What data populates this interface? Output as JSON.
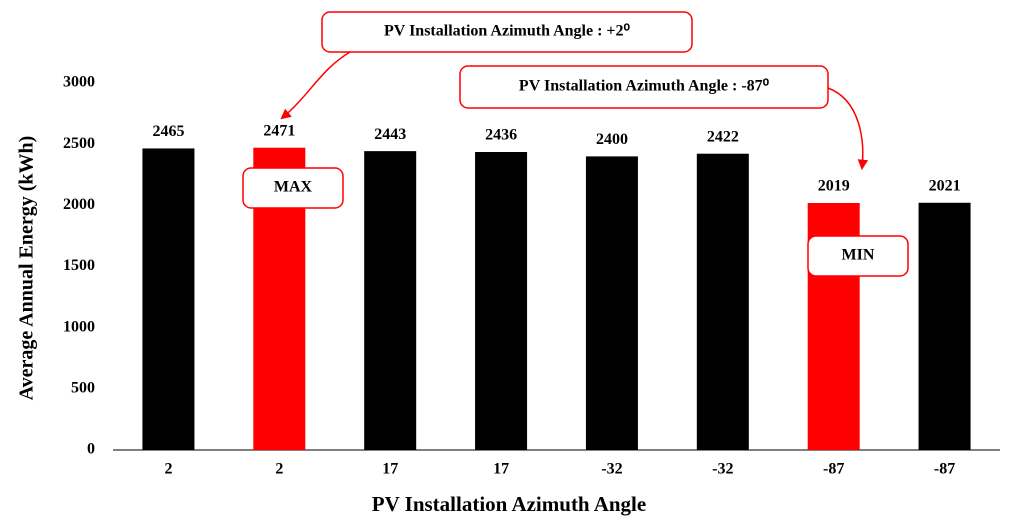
{
  "chart_data": {
    "type": "bar",
    "x_label": "PV Installation Azimuth Angle",
    "y_label": "Average Annual Energy (kWh)",
    "categories": [
      "2",
      "2",
      "17",
      "17",
      "-32",
      "-32",
      "-87",
      "-87"
    ],
    "values": [
      2465,
      2471,
      2443,
      2436,
      2400,
      2422,
      2019,
      2021
    ],
    "colors": [
      "#000000",
      "#ff0000",
      "#000000",
      "#000000",
      "#000000",
      "#000000",
      "#ff0000",
      "#000000"
    ],
    "ylim": [
      0,
      3000
    ],
    "yticks": [
      0,
      500,
      1000,
      1500,
      2000,
      2500,
      3000
    ],
    "grid": false,
    "annotations": [
      {
        "text": "PV Installation Azimuth Angle : +2⁰"
      },
      {
        "text": "PV Installation Azimuth Angle : -87⁰"
      },
      {
        "text": "MAX"
      },
      {
        "text": "MIN"
      }
    ]
  }
}
